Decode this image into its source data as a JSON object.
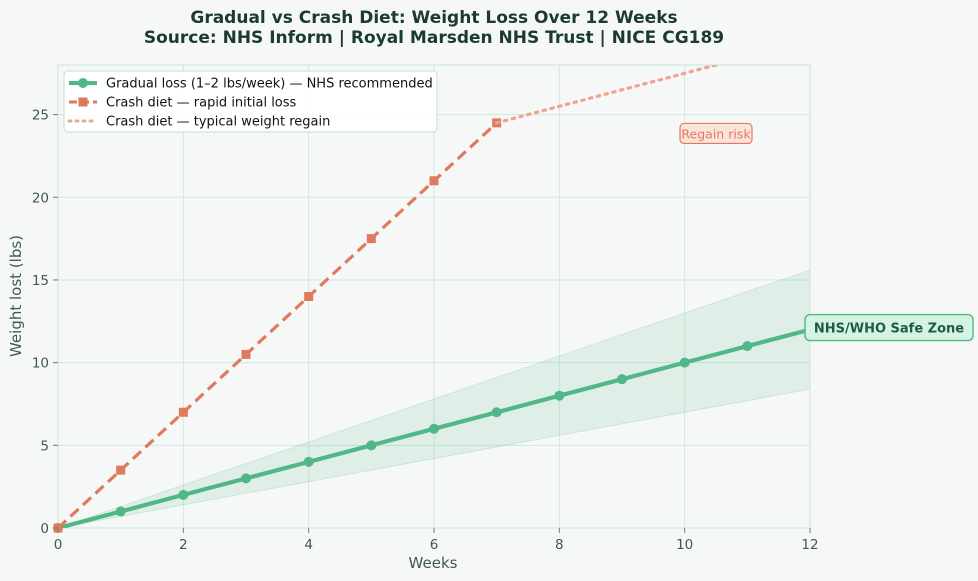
{
  "chart_data": {
    "type": "line",
    "title": "Gradual vs Crash Diet: Weight Loss Over 12 Weeks",
    "subtitle": "Source: NHS Inform | Royal Marsden NHS Trust | NICE CG189",
    "xlabel": "Weeks",
    "ylabel": "Weight lost (lbs)",
    "xlim": [
      0,
      12
    ],
    "ylim": [
      0,
      28
    ],
    "x_ticks": [
      "0",
      "2",
      "4",
      "6",
      "8",
      "10",
      "12"
    ],
    "y_ticks": [
      "0",
      "5",
      "10",
      "15",
      "20",
      "25"
    ],
    "grid": true,
    "legend_position": "top-left",
    "series": [
      {
        "name": "Gradual loss (1–2 lbs/week) — NHS recommended",
        "style": "solid",
        "marker": "circle",
        "color": "#52b788",
        "x": [
          0,
          1,
          2,
          3,
          4,
          5,
          6,
          7,
          8,
          9,
          10,
          11,
          12
        ],
        "y": [
          0,
          1,
          2,
          3,
          4,
          5,
          6,
          7,
          8,
          9,
          10,
          11,
          12
        ]
      },
      {
        "name": "Crash diet — rapid initial loss",
        "style": "dashed",
        "marker": "square",
        "color": "#e07a5f",
        "x": [
          0,
          1,
          2,
          3,
          4,
          5,
          6,
          7
        ],
        "y": [
          0,
          3.5,
          7,
          10.5,
          14,
          17.5,
          21,
          24.5
        ]
      },
      {
        "name": "Crash diet — typical weight regain",
        "style": "dotted",
        "marker": "none",
        "color": "#eea58f",
        "x": [
          7,
          8,
          9,
          10,
          11,
          12
        ],
        "y": [
          24.5,
          25.5,
          26.5,
          27.5,
          28.5,
          29.5
        ]
      }
    ],
    "band": {
      "x": [
        0,
        12
      ],
      "lower": [
        0,
        8.4
      ],
      "upper": [
        0,
        15.6
      ],
      "color": "#52b788"
    },
    "annotations": [
      {
        "text": "Regain risk",
        "x": 10.5,
        "y": 23.8
      },
      {
        "text": "NHS/WHO Safe Zone",
        "x": 12,
        "y": 12
      }
    ]
  },
  "colors": {
    "background": "#f6f8f7",
    "plot_background": "#f6f8f7",
    "grid": "#cfe9dc",
    "title": "#1b3b2e",
    "axis_text": "#3e5a50",
    "safe_zone_box": "#d6f2e2",
    "regain_box": "#fde4db"
  }
}
